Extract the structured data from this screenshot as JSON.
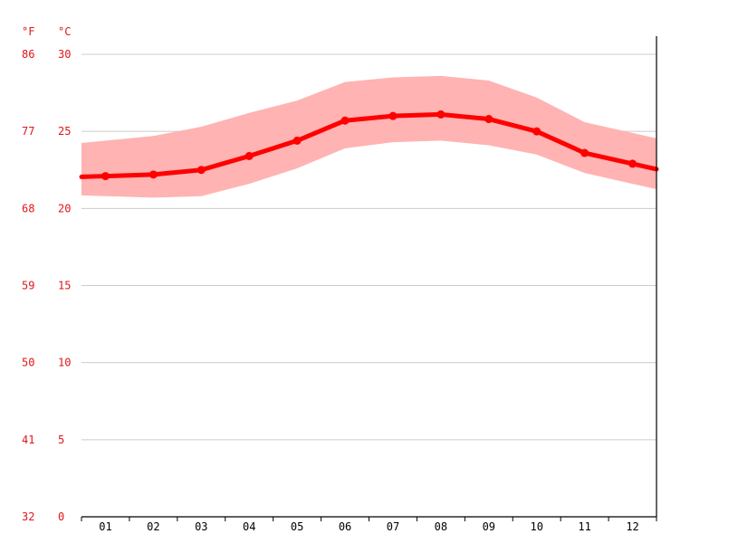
{
  "chart_data": {
    "type": "line",
    "title": "",
    "xlabel": "",
    "ylabel": "",
    "y_unit_left": "°F",
    "y_unit_right": "°C",
    "categories": [
      "01",
      "02",
      "03",
      "04",
      "05",
      "06",
      "07",
      "08",
      "09",
      "10",
      "11",
      "12"
    ],
    "ylim": [
      0,
      30
    ],
    "yticks_c": [
      "30",
      "25",
      "20",
      "15",
      "10",
      "5",
      "0"
    ],
    "yticks_f": [
      "86",
      "77",
      "68",
      "59",
      "50",
      "41",
      "32"
    ],
    "series": [
      {
        "values": [
          22.1,
          22.2,
          22.5,
          23.4,
          24.4,
          25.7,
          26.0,
          26.1,
          25.8,
          25.0,
          23.6,
          22.9
        ]
      }
    ],
    "band": {
      "upper": [
        24.4,
        24.7,
        25.3,
        26.2,
        27.0,
        28.2,
        28.5,
        28.6,
        28.3,
        27.2,
        25.6,
        24.9
      ],
      "lower": [
        20.8,
        20.7,
        20.8,
        21.6,
        22.6,
        23.9,
        24.3,
        24.4,
        24.1,
        23.5,
        22.3,
        21.6
      ]
    },
    "grid": true,
    "colors": {
      "line": "#ff0000",
      "band": "#ffb3b3",
      "tick_text": "#e0161a",
      "grid": "#cccccc",
      "axis": "#000000"
    }
  }
}
